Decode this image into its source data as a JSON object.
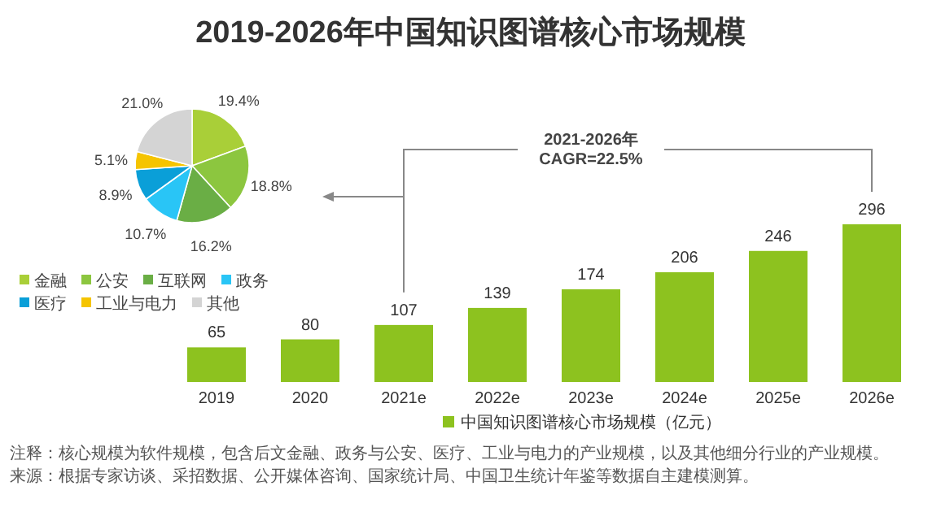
{
  "chart_data": [
    {
      "type": "bar",
      "title": "2019-2026年中国知识图谱核心市场规模",
      "categories": [
        "2019",
        "2020",
        "2021e",
        "2022e",
        "2023e",
        "2024e",
        "2025e",
        "2026e"
      ],
      "series": [
        {
          "name": "中国知识图谱核心市场规模（亿元）",
          "color": "#8dc21f",
          "values": [
            65,
            80,
            107,
            139,
            174,
            206,
            246,
            296
          ]
        }
      ],
      "data_labels": true,
      "legend": "bottom",
      "annotations": [
        "2021-2026年\nCAGR=22.5%",
        "注释：核心规模为软件规模，包含后文金融、政务与公安、医疗、工业与电力的产业规模，以及其他细分行业的产业规模。",
        "来源：根据专家访谈、采招数据、公开媒体咨询、国家统计局、中国卫生统计年鉴等数据自主建模测算。"
      ]
    },
    {
      "type": "pie",
      "categories": [
        "金融",
        "公安",
        "互联网",
        "政务",
        "医疗",
        "工业与电力",
        "其他"
      ],
      "values": [
        19.4,
        18.8,
        16.2,
        10.7,
        8.9,
        5.1,
        21.0
      ],
      "colors": [
        "#a9cf38",
        "#8cc63f",
        "#6aae45",
        "#29c5f6",
        "#0a9fd8",
        "#f5c400",
        "#d4d4d4"
      ],
      "value_labels": [
        "19.4%",
        "18.8%",
        "16.2%",
        "10.7%",
        "8.9%",
        "5.1%",
        "21.0%"
      ],
      "legend": "bottom"
    }
  ]
}
